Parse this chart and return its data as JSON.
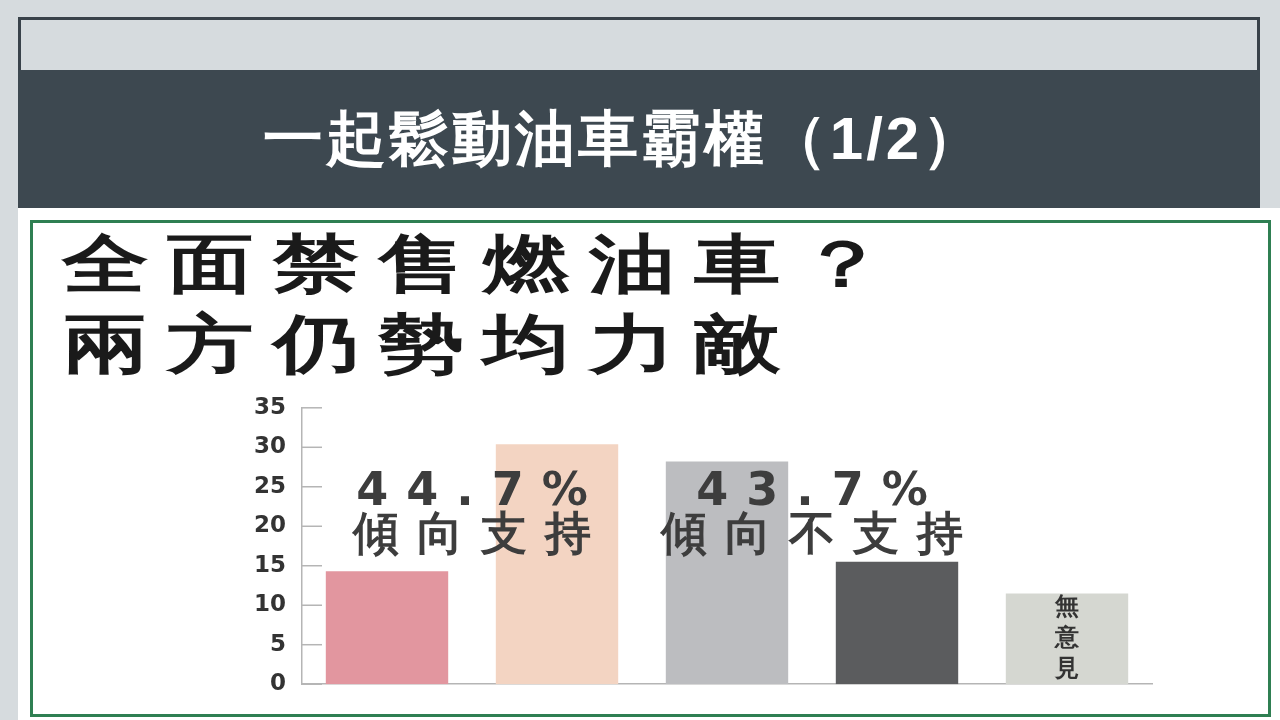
{
  "chart_data": {
    "type": "bar",
    "title": "一起鬆動油車霸權（1/2）",
    "subtitle": "全面禁售燃油車？兩方仍勢均力敵",
    "categories": [
      null,
      null,
      null,
      null,
      "無意見"
    ],
    "values": [
      14.3,
      30.4,
      28.2,
      15.5,
      11.5
    ],
    "colors": [
      "#e2969f",
      "#f3d4c2",
      "#bcbdc0",
      "#5b5c5e",
      "#d5d7d1"
    ],
    "ylim": [
      0,
      35
    ],
    "yticks": [
      0,
      5,
      10,
      15,
      20,
      25,
      30,
      35
    ],
    "annotations": [
      "44.7%\n傾向支持",
      "43.7%\n傾向不支持"
    ]
  }
}
